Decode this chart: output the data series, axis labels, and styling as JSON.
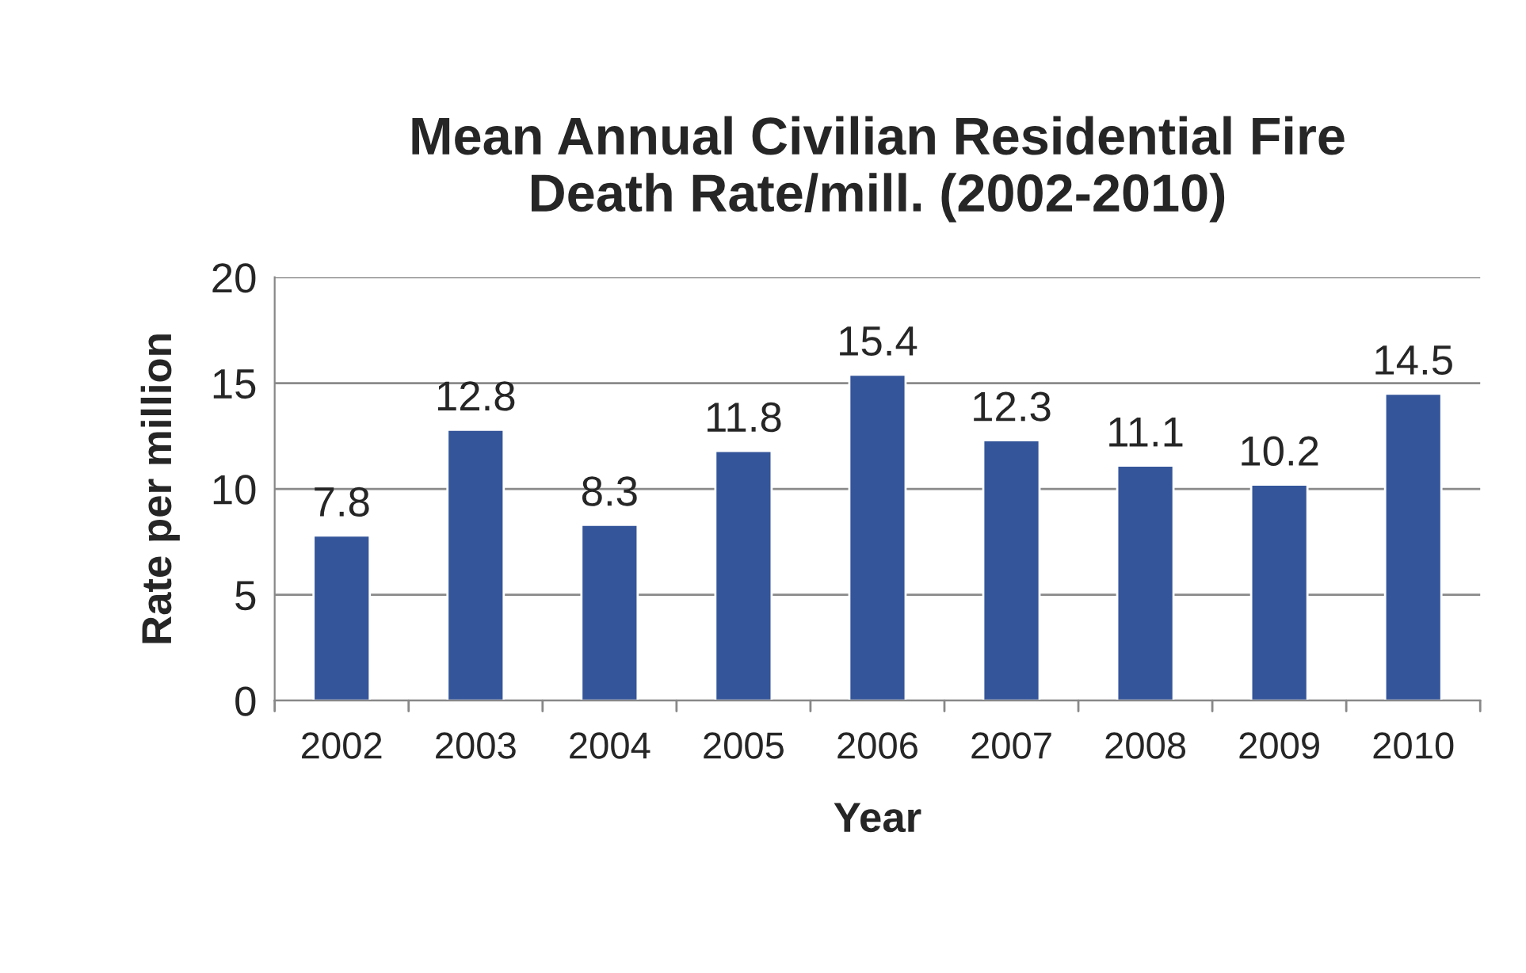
{
  "chart_data": {
    "type": "bar",
    "title": "Mean Annual Civilian Residential Fire\nDeath Rate/mill. (2002-2010)",
    "xlabel": "Year",
    "ylabel": "Rate per million",
    "categories": [
      "2002",
      "2003",
      "2004",
      "2005",
      "2006",
      "2007",
      "2008",
      "2009",
      "2010"
    ],
    "values": [
      7.8,
      12.8,
      8.3,
      11.8,
      15.4,
      12.3,
      11.1,
      10.2,
      14.5
    ],
    "color": "#34559a",
    "ylim": [
      0,
      20
    ],
    "yticks": [
      0,
      5,
      10,
      15,
      20
    ],
    "grid": "y",
    "data_labels": true
  }
}
